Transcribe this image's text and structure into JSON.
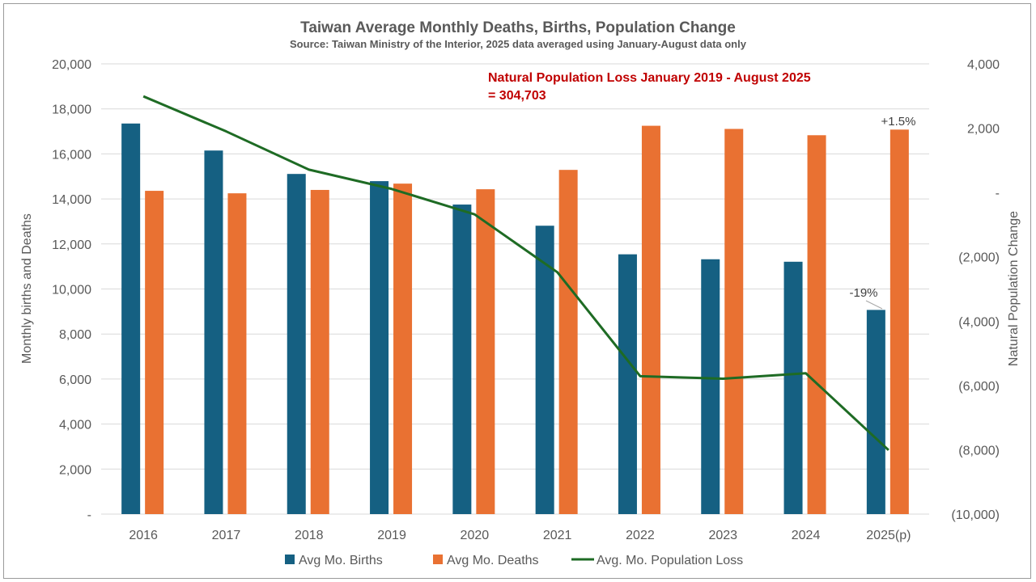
{
  "chart_data": {
    "type": "bar",
    "title": "Taiwan Average Monthly Deaths, Births, Population Change",
    "subtitle": "Source: Taiwan Ministry of the Interior, 2025 data averaged using January-August data only",
    "categories": [
      "2016",
      "2017",
      "2018",
      "2019",
      "2020",
      "2021",
      "2022",
      "2023",
      "2024",
      "2025(p)"
    ],
    "series": [
      {
        "name": "Avg Mo. Births",
        "type": "bar",
        "axis": "left",
        "color": "#156082",
        "values": [
          17350,
          16150,
          15110,
          14790,
          13750,
          12810,
          11540,
          11320,
          11210,
          9070
        ]
      },
      {
        "name": "Avg Mo. Deaths",
        "type": "bar",
        "axis": "left",
        "color": "#e97132",
        "values": [
          14360,
          14250,
          14400,
          14680,
          14430,
          15290,
          17250,
          17110,
          16830,
          17080
        ]
      },
      {
        "name": "Avg. Mo. Population Loss",
        "type": "line",
        "axis": "right",
        "color": "#1e6b24",
        "values": [
          2990,
          1900,
          710,
          110,
          -680,
          -2480,
          -5710,
          -5790,
          -5620,
          -8010
        ]
      }
    ],
    "ylabel": "Monthly births and Deaths",
    "y2label": "Natural Population Change",
    "ylim": [
      0,
      20000
    ],
    "y2lim": [
      -10000,
      4000
    ],
    "yticks": [
      "-",
      "2,000",
      "4,000",
      "6,000",
      "8,000",
      "10,000",
      "12,000",
      "14,000",
      "16,000",
      "18,000",
      "20,000"
    ],
    "y2ticks": [
      "(10,000)",
      "(8,000)",
      "(6,000)",
      "(4,000)",
      "(2,000)",
      "-",
      "2,000",
      "4,000"
    ],
    "grid": true,
    "legend_position": "bottom",
    "annotation": {
      "line1": "Natural Population Loss January 2019 - August 2025",
      "line2": "= 304,703"
    },
    "births_change_label": "-19%",
    "deaths_change_label": "+1.5%"
  }
}
